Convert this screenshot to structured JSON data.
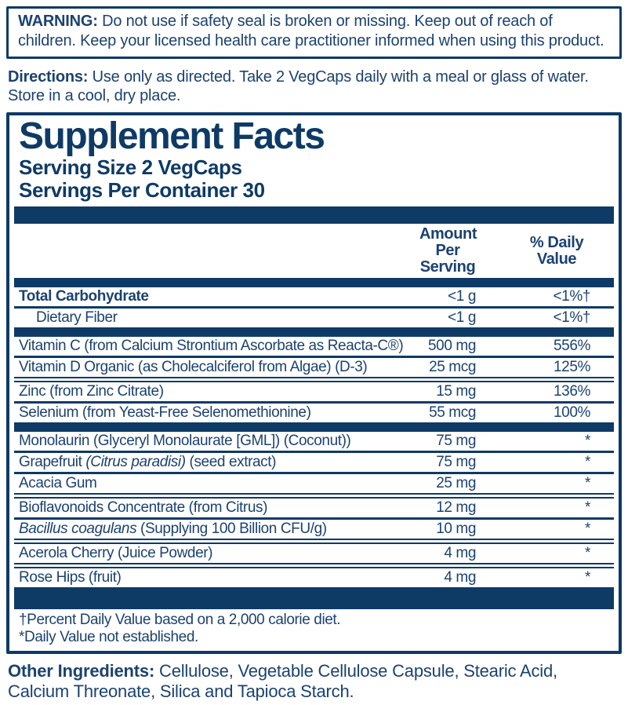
{
  "colors": {
    "navy": "#0e3a66",
    "text": "#1b4270"
  },
  "warning": {
    "label": "WARNING:",
    "text": "Do not use if safety seal is broken or missing. Keep out of reach of children. Keep your licensed health care practitioner informed when using this product."
  },
  "directions": {
    "label": "Directions:",
    "text": "Use only as directed. Take 2 VegCaps daily with a meal or glass of water. Store in a cool, dry place."
  },
  "facts": {
    "title": "Supplement Facts",
    "serving_size": "Serving Size 2 VegCaps",
    "servings_per_container": "Servings Per Container 30",
    "col_amount_1": "Amount Per",
    "col_amount_2": "Serving",
    "col_dv_1": "% Daily",
    "col_dv_2": "Value",
    "rows": [
      {
        "pre": "Total Carbohydrate",
        "italic": "",
        "post": "",
        "amount": "<1 g",
        "dv": "<1%†"
      },
      {
        "pre": "Dietary Fiber",
        "italic": "",
        "post": "",
        "amount": "<1 g",
        "dv": "<1%†"
      },
      {
        "pre": "Vitamin C (from Calcium Strontium Ascorbate as Reacta-C®)",
        "italic": "",
        "post": "",
        "amount": "500 mg",
        "dv": "556%"
      },
      {
        "pre": "Vitamin D Organic (as Cholecalciferol from Algae) (D-3)",
        "italic": "",
        "post": "",
        "amount": "25 mcg",
        "dv": "125%"
      },
      {
        "pre": "Zinc (from Zinc Citrate)",
        "italic": "",
        "post": "",
        "amount": "15 mg",
        "dv": "136%"
      },
      {
        "pre": "Selenium (from Yeast-Free Selenomethionine)",
        "italic": "",
        "post": "",
        "amount": "55 mcg",
        "dv": "100%"
      },
      {
        "pre": "Monolaurin (Glyceryl Monolaurate [GML]) (Coconut))",
        "italic": "",
        "post": "",
        "amount": "75 mg",
        "dv": "*"
      },
      {
        "pre": "Grapefruit ",
        "italic": "(Citrus paradisi)",
        "post": " (seed extract)",
        "amount": "75 mg",
        "dv": "*"
      },
      {
        "pre": "Acacia Gum",
        "italic": "",
        "post": "",
        "amount": "25 mg",
        "dv": "*"
      },
      {
        "pre": "Bioflavonoids Concentrate (from Citrus)",
        "italic": "",
        "post": "",
        "amount": "12 mg",
        "dv": "*"
      },
      {
        "pre": "",
        "italic": "Bacillus coagulans",
        "post": " (Supplying 100 Billion CFU/g)",
        "amount": "10 mg",
        "dv": "*"
      },
      {
        "pre": "Acerola Cherry (Juice Powder)",
        "italic": "",
        "post": "",
        "amount": "4 mg",
        "dv": "*"
      },
      {
        "pre": "Rose Hips (fruit)",
        "italic": "",
        "post": "",
        "amount": "4 mg",
        "dv": "*"
      }
    ],
    "footnote_dagger": "†Percent Daily Value based on a 2,000 calorie diet.",
    "footnote_asterisk": "*Daily Value not established."
  },
  "other_ingredients": {
    "label": "Other Ingredients:",
    "text": "Cellulose, Vegetable Cellulose Capsule, Stearic Acid, Calcium Threonate, Silica and Tapioca Starch."
  }
}
